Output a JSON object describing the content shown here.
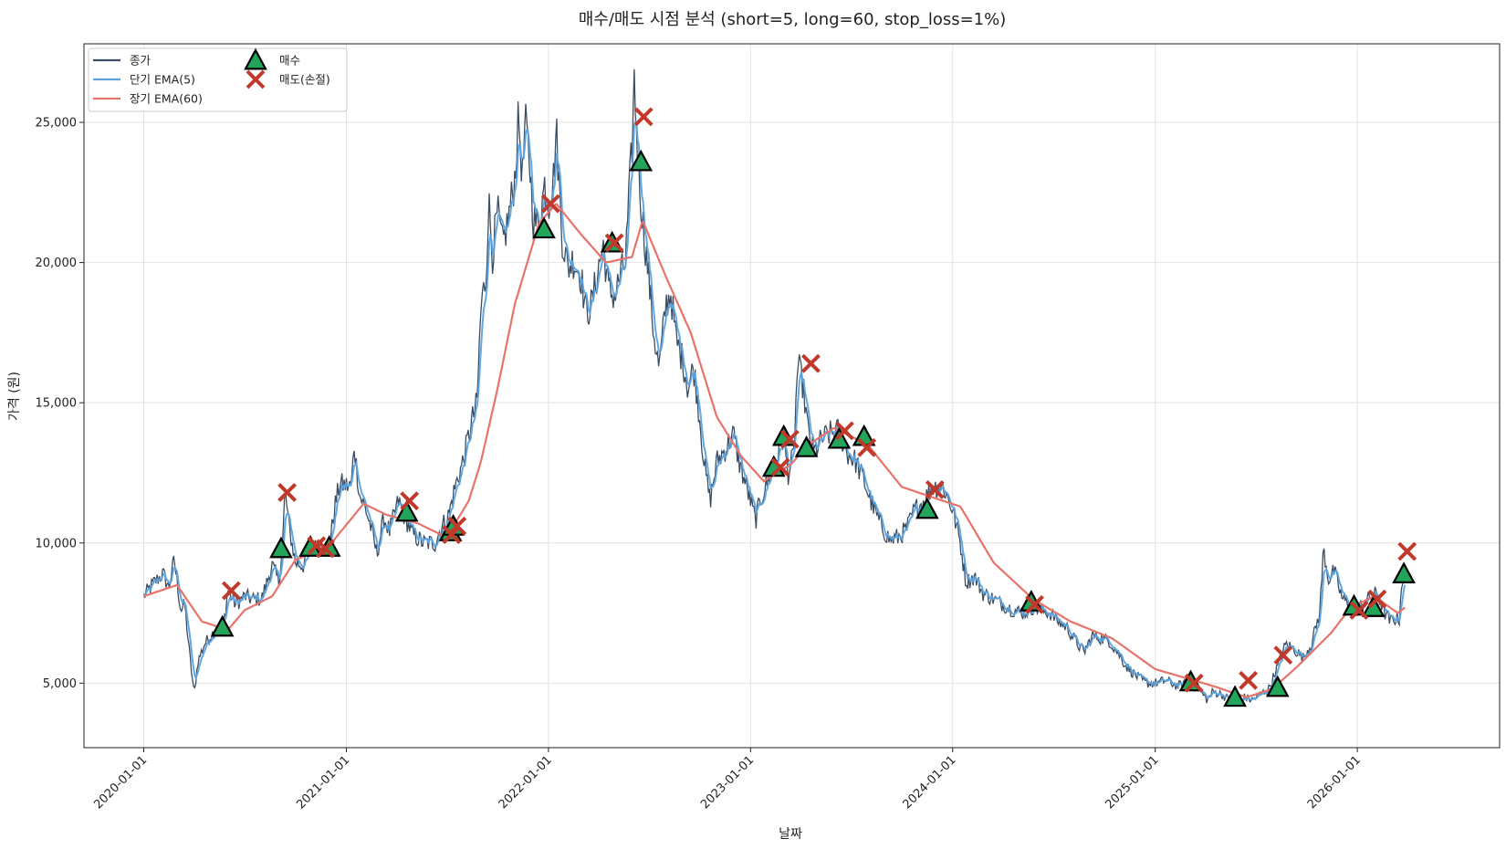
{
  "chart_data": {
    "type": "line",
    "title": "매수/매도 시점 분석 (short=5, long=60, stop_loss=1%)",
    "xlabel": "날짜",
    "ylabel": "가격 (원)",
    "xlim": [
      "2019-09-15",
      "2026-09-15"
    ],
    "ylim": [
      2700,
      27800
    ],
    "grid": true,
    "legend_position": "top-left",
    "colors": {
      "close": "#3a4d63",
      "short_ema": "#5aa3e0",
      "long_ema": "#e8736b",
      "buy": "#22a55a",
      "sell": "#c0392b"
    },
    "x_ticks": [
      "2020-01-01",
      "2021-01-01",
      "2022-01-01",
      "2023-01-01",
      "2024-01-01",
      "2025-01-01",
      "2026-01-01"
    ],
    "y_ticks": [
      5000,
      10000,
      15000,
      20000,
      25000
    ],
    "y_tick_labels": [
      "5,000",
      "10,000",
      "15,000",
      "20,000",
      "25,000"
    ],
    "legend": [
      {
        "label": "종가",
        "kind": "line",
        "color": "#3a4d63"
      },
      {
        "label": "단기 EMA(5)",
        "kind": "line",
        "color": "#5aa3e0"
      },
      {
        "label": "장기 EMA(60)",
        "kind": "line",
        "color": "#e8736b"
      },
      {
        "label": "매수",
        "kind": "buy"
      },
      {
        "label": "매도(손절)",
        "kind": "sell"
      }
    ],
    "close_anchors": [
      [
        "2020-01-01",
        8100
      ],
      [
        "2020-01-20",
        8600
      ],
      [
        "2020-02-05",
        8900
      ],
      [
        "2020-02-15",
        8400
      ],
      [
        "2020-02-25",
        9400
      ],
      [
        "2020-03-08",
        7600
      ],
      [
        "2020-03-15",
        7800
      ],
      [
        "2020-03-25",
        5800
      ],
      [
        "2020-04-01",
        4600
      ],
      [
        "2020-04-08",
        5800
      ],
      [
        "2020-04-20",
        6400
      ],
      [
        "2020-05-01",
        6700
      ],
      [
        "2020-05-15",
        7000
      ],
      [
        "2020-05-25",
        7200
      ],
      [
        "2020-06-01",
        8300
      ],
      [
        "2020-06-15",
        7800
      ],
      [
        "2020-07-01",
        8100
      ],
      [
        "2020-07-15",
        8000
      ],
      [
        "2020-08-01",
        8000
      ],
      [
        "2020-08-20",
        9200
      ],
      [
        "2020-09-01",
        8600
      ],
      [
        "2020-09-08",
        10000
      ],
      [
        "2020-09-12",
        11900
      ],
      [
        "2020-09-20",
        10500
      ],
      [
        "2020-10-01",
        9300
      ],
      [
        "2020-10-15",
        9200
      ],
      [
        "2020-11-01",
        9800
      ],
      [
        "2020-11-15",
        9900
      ],
      [
        "2020-12-01",
        9700
      ],
      [
        "2020-12-10",
        11200
      ],
      [
        "2020-12-20",
        12100
      ],
      [
        "2021-01-10",
        12000
      ],
      [
        "2021-01-15",
        13500
      ],
      [
        "2021-01-25",
        11700
      ],
      [
        "2021-02-05",
        11200
      ],
      [
        "2021-02-15",
        10500
      ],
      [
        "2021-02-25",
        9600
      ],
      [
        "2021-03-10",
        10900
      ],
      [
        "2021-03-20",
        10400
      ],
      [
        "2021-04-05",
        11500
      ],
      [
        "2021-04-15",
        11000
      ],
      [
        "2021-05-01",
        10300
      ],
      [
        "2021-05-20",
        10000
      ],
      [
        "2021-06-10",
        10000
      ],
      [
        "2021-06-20",
        10500
      ],
      [
        "2021-07-05",
        11000
      ],
      [
        "2021-07-15",
        11900
      ],
      [
        "2021-08-01",
        13000
      ],
      [
        "2021-08-15",
        14300
      ],
      [
        "2021-08-25",
        15000
      ],
      [
        "2021-09-01",
        18400
      ],
      [
        "2021-09-10",
        19500
      ],
      [
        "2021-09-15",
        22200
      ],
      [
        "2021-09-22",
        20300
      ],
      [
        "2021-10-01",
        21800
      ],
      [
        "2021-10-10",
        20600
      ],
      [
        "2021-10-20",
        21500
      ],
      [
        "2021-11-01",
        23000
      ],
      [
        "2021-11-08",
        25200
      ],
      [
        "2021-11-15",
        23000
      ],
      [
        "2021-11-20",
        25000
      ],
      [
        "2021-11-28",
        23600
      ],
      [
        "2021-12-05",
        21500
      ],
      [
        "2021-12-15",
        21300
      ],
      [
        "2021-12-25",
        22800
      ],
      [
        "2022-01-01",
        22100
      ],
      [
        "2022-01-10",
        23000
      ],
      [
        "2022-01-15",
        24800
      ],
      [
        "2022-01-25",
        21000
      ],
      [
        "2022-02-05",
        19800
      ],
      [
        "2022-02-15",
        20100
      ],
      [
        "2022-03-01",
        19500
      ],
      [
        "2022-03-10",
        18200
      ],
      [
        "2022-03-20",
        18500
      ],
      [
        "2022-04-01",
        19800
      ],
      [
        "2022-04-10",
        20600
      ],
      [
        "2022-04-20",
        19000
      ],
      [
        "2022-05-01",
        18800
      ],
      [
        "2022-05-10",
        19500
      ],
      [
        "2022-05-20",
        20000
      ],
      [
        "2022-05-27",
        22500
      ],
      [
        "2022-06-01",
        24200
      ],
      [
        "2022-06-05",
        26500
      ],
      [
        "2022-06-12",
        23500
      ],
      [
        "2022-06-20",
        21500
      ],
      [
        "2022-07-01",
        19500
      ],
      [
        "2022-07-10",
        17500
      ],
      [
        "2022-07-20",
        16200
      ],
      [
        "2022-08-01",
        18500
      ],
      [
        "2022-08-10",
        18900
      ],
      [
        "2022-08-20",
        17200
      ],
      [
        "2022-09-01",
        16500
      ],
      [
        "2022-09-10",
        15500
      ],
      [
        "2022-09-20",
        16300
      ],
      [
        "2022-10-01",
        14500
      ],
      [
        "2022-10-10",
        12700
      ],
      [
        "2022-10-20",
        11500
      ],
      [
        "2022-11-01",
        12900
      ],
      [
        "2022-11-15",
        13300
      ],
      [
        "2022-12-01",
        13900
      ],
      [
        "2022-12-10",
        13000
      ],
      [
        "2022-12-20",
        12300
      ],
      [
        "2023-01-01",
        11500
      ],
      [
        "2023-01-10",
        10800
      ],
      [
        "2023-01-20",
        11600
      ],
      [
        "2023-02-01",
        12200
      ],
      [
        "2023-02-10",
        12800
      ],
      [
        "2023-02-20",
        13200
      ],
      [
        "2023-03-01",
        13800
      ],
      [
        "2023-03-10",
        12500
      ],
      [
        "2023-03-20",
        13100
      ],
      [
        "2023-03-27",
        16400
      ],
      [
        "2023-04-05",
        15700
      ],
      [
        "2023-04-15",
        14000
      ],
      [
        "2023-04-25",
        13200
      ],
      [
        "2023-05-10",
        13700
      ],
      [
        "2023-05-25",
        13900
      ],
      [
        "2023-06-10",
        14000
      ],
      [
        "2023-06-25",
        13200
      ],
      [
        "2023-07-10",
        12900
      ],
      [
        "2023-07-25",
        12200
      ],
      [
        "2023-08-10",
        11300
      ],
      [
        "2023-08-25",
        10600
      ],
      [
        "2023-09-10",
        10100
      ],
      [
        "2023-09-25",
        10200
      ],
      [
        "2023-10-10",
        10500
      ],
      [
        "2023-10-25",
        11200
      ],
      [
        "2023-11-10",
        11500
      ],
      [
        "2023-11-25",
        12000
      ],
      [
        "2023-12-15",
        12000
      ],
      [
        "2024-01-01",
        11200
      ],
      [
        "2024-01-15",
        10000
      ],
      [
        "2024-01-25",
        8600
      ],
      [
        "2024-02-10",
        8800
      ],
      [
        "2024-02-25",
        8200
      ],
      [
        "2024-03-15",
        8000
      ],
      [
        "2024-04-01",
        7800
      ],
      [
        "2024-04-20",
        7600
      ],
      [
        "2024-05-10",
        7500
      ],
      [
        "2024-05-25",
        7700
      ],
      [
        "2024-06-10",
        7600
      ],
      [
        "2024-06-25",
        7500
      ],
      [
        "2024-07-10",
        7200
      ],
      [
        "2024-07-25",
        7000
      ],
      [
        "2024-08-10",
        6500
      ],
      [
        "2024-08-25",
        6100
      ],
      [
        "2024-09-10",
        6700
      ],
      [
        "2024-09-25",
        6600
      ],
      [
        "2024-10-10",
        6500
      ],
      [
        "2024-10-25",
        6100
      ],
      [
        "2024-11-10",
        5600
      ],
      [
        "2024-11-25",
        5300
      ],
      [
        "2024-12-15",
        5000
      ],
      [
        "2025-01-01",
        5000
      ],
      [
        "2025-01-20",
        5100
      ],
      [
        "2025-02-10",
        4900
      ],
      [
        "2025-03-01",
        5000
      ],
      [
        "2025-03-20",
        4800
      ],
      [
        "2025-04-05",
        4400
      ],
      [
        "2025-04-15",
        4700
      ],
      [
        "2025-05-01",
        4600
      ],
      [
        "2025-05-15",
        4400
      ],
      [
        "2025-06-01",
        4300
      ],
      [
        "2025-06-10",
        4500
      ],
      [
        "2025-06-25",
        4400
      ],
      [
        "2025-07-10",
        4600
      ],
      [
        "2025-07-25",
        4800
      ],
      [
        "2025-08-10",
        5600
      ],
      [
        "2025-08-25",
        6400
      ],
      [
        "2025-09-10",
        6200
      ],
      [
        "2025-09-25",
        5900
      ],
      [
        "2025-10-10",
        6400
      ],
      [
        "2025-10-25",
        7500
      ],
      [
        "2025-11-01",
        9800
      ],
      [
        "2025-11-10",
        8700
      ],
      [
        "2025-11-20",
        9000
      ],
      [
        "2025-12-05",
        8000
      ],
      [
        "2025-12-20",
        7800
      ],
      [
        "2026-01-01",
        7600
      ],
      [
        "2026-01-15",
        7900
      ],
      [
        "2026-02-01",
        8200
      ],
      [
        "2026-02-10",
        8000
      ],
      [
        "2026-02-20",
        7500
      ],
      [
        "2026-03-01",
        7200
      ],
      [
        "2026-03-10",
        7300
      ],
      [
        "2026-03-18",
        7300
      ],
      [
        "2026-03-22",
        8600
      ],
      [
        "2026-03-28",
        8800
      ]
    ],
    "long_ema_anchors": [
      [
        "2020-01-01",
        8100
      ],
      [
        "2020-03-01",
        8500
      ],
      [
        "2020-04-15",
        7200
      ],
      [
        "2020-06-01",
        6900
      ],
      [
        "2020-07-01",
        7600
      ],
      [
        "2020-08-20",
        8100
      ],
      [
        "2020-10-01",
        9400
      ],
      [
        "2020-12-01",
        9900
      ],
      [
        "2021-02-01",
        11400
      ],
      [
        "2021-03-15",
        11000
      ],
      [
        "2021-05-10",
        10700
      ],
      [
        "2021-07-01",
        10200
      ],
      [
        "2021-08-10",
        11500
      ],
      [
        "2021-09-01",
        12900
      ],
      [
        "2021-10-01",
        15500
      ],
      [
        "2021-11-01",
        18500
      ],
      [
        "2021-12-15",
        21400
      ],
      [
        "2022-01-15",
        22100
      ],
      [
        "2022-03-01",
        21000
      ],
      [
        "2022-04-15",
        20000
      ],
      [
        "2022-06-01",
        20200
      ],
      [
        "2022-06-20",
        21500
      ],
      [
        "2022-08-01",
        19500
      ],
      [
        "2022-09-15",
        17500
      ],
      [
        "2022-11-01",
        14500
      ],
      [
        "2022-12-15",
        13100
      ],
      [
        "2023-01-25",
        12200
      ],
      [
        "2023-03-15",
        12800
      ],
      [
        "2023-04-15",
        13500
      ],
      [
        "2023-06-01",
        14100
      ],
      [
        "2023-08-01",
        13500
      ],
      [
        "2023-10-01",
        12000
      ],
      [
        "2023-12-15",
        11500
      ],
      [
        "2024-01-15",
        11300
      ],
      [
        "2024-03-15",
        9300
      ],
      [
        "2024-05-25",
        8000
      ],
      [
        "2024-08-01",
        7200
      ],
      [
        "2024-10-15",
        6600
      ],
      [
        "2025-01-01",
        5500
      ],
      [
        "2025-04-15",
        4900
      ],
      [
        "2025-06-15",
        4500
      ],
      [
        "2025-08-01",
        4800
      ],
      [
        "2025-09-15",
        5600
      ],
      [
        "2025-11-15",
        6800
      ],
      [
        "2025-12-20",
        7700
      ],
      [
        "2026-02-01",
        8100
      ],
      [
        "2026-03-15",
        7500
      ],
      [
        "2026-03-28",
        7700
      ]
    ],
    "buy_signals": [
      {
        "date": "2020-05-22",
        "price": 7000
      },
      {
        "date": "2020-09-05",
        "price": 9800
      },
      {
        "date": "2020-10-28",
        "price": 9850
      },
      {
        "date": "2020-12-01",
        "price": 9850
      },
      {
        "date": "2021-04-20",
        "price": 11100
      },
      {
        "date": "2021-07-08",
        "price": 10400
      },
      {
        "date": "2021-07-13",
        "price": 10600
      },
      {
        "date": "2021-12-24",
        "price": 21200
      },
      {
        "date": "2022-04-26",
        "price": 20700
      },
      {
        "date": "2022-06-17",
        "price": 23600
      },
      {
        "date": "2023-02-12",
        "price": 12700
      },
      {
        "date": "2023-03-02",
        "price": 13800
      },
      {
        "date": "2023-04-12",
        "price": 13400
      },
      {
        "date": "2023-06-10",
        "price": 13700
      },
      {
        "date": "2023-07-25",
        "price": 13800
      },
      {
        "date": "2023-11-16",
        "price": 11200
      },
      {
        "date": "2024-05-22",
        "price": 7900
      },
      {
        "date": "2025-03-06",
        "price": 5050
      },
      {
        "date": "2025-05-25",
        "price": 4500
      },
      {
        "date": "2025-08-10",
        "price": 4850
      },
      {
        "date": "2025-12-26",
        "price": 7750
      },
      {
        "date": "2026-01-30",
        "price": 7700
      },
      {
        "date": "2026-03-26",
        "price": 8900
      }
    ],
    "sell_signals": [
      {
        "date": "2020-06-07",
        "price": 8300
      },
      {
        "date": "2020-09-16",
        "price": 11800
      },
      {
        "date": "2020-11-08",
        "price": 9900
      },
      {
        "date": "2020-11-24",
        "price": 9800
      },
      {
        "date": "2021-04-25",
        "price": 11500
      },
      {
        "date": "2021-07-10",
        "price": 10300
      },
      {
        "date": "2021-07-20",
        "price": 10600
      },
      {
        "date": "2022-01-05",
        "price": 22100
      },
      {
        "date": "2022-04-30",
        "price": 20700
      },
      {
        "date": "2022-06-22",
        "price": 25200
      },
      {
        "date": "2023-02-24",
        "price": 12700
      },
      {
        "date": "2023-03-13",
        "price": 13700
      },
      {
        "date": "2023-04-20",
        "price": 16400
      },
      {
        "date": "2023-06-20",
        "price": 14000
      },
      {
        "date": "2023-07-30",
        "price": 13400
      },
      {
        "date": "2023-11-30",
        "price": 11900
      },
      {
        "date": "2024-05-28",
        "price": 7800
      },
      {
        "date": "2025-03-12",
        "price": 5000
      },
      {
        "date": "2025-06-18",
        "price": 5100
      },
      {
        "date": "2025-08-20",
        "price": 6000
      },
      {
        "date": "2026-01-04",
        "price": 7600
      },
      {
        "date": "2026-02-06",
        "price": 8000
      },
      {
        "date": "2026-04-01",
        "price": 9700
      }
    ]
  }
}
